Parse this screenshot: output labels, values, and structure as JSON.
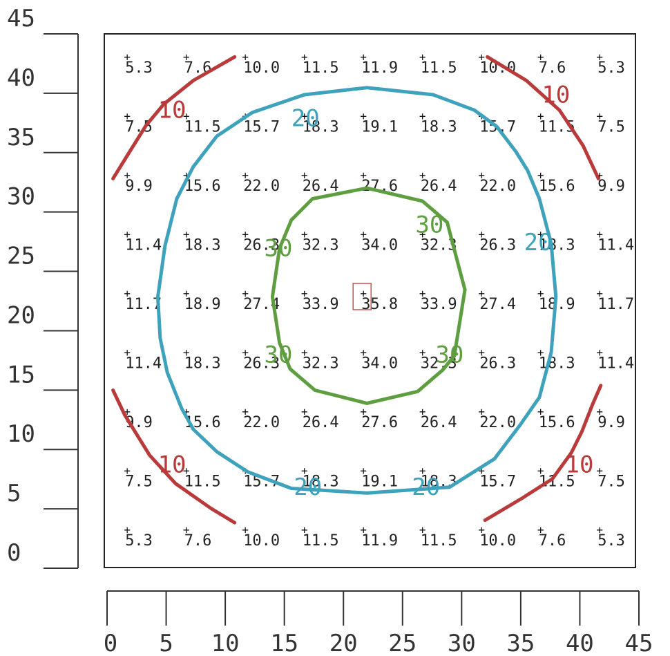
{
  "chart_data": {
    "type": "heatmap",
    "title": "",
    "xlabel": "",
    "ylabel": "",
    "xlim": [
      0,
      45
    ],
    "ylim": [
      0,
      45
    ],
    "x_ticks": [
      "0",
      "5",
      "10",
      "15",
      "20",
      "25",
      "30",
      "35",
      "40",
      "45"
    ],
    "y_ticks": [
      "0",
      "5",
      "10",
      "15",
      "20",
      "25",
      "30",
      "35",
      "40",
      "45"
    ],
    "grid_x": [
      2,
      7,
      12,
      17,
      22,
      27,
      32,
      37,
      42
    ],
    "grid_y": [
      40,
      35,
      30,
      25,
      20,
      15,
      10,
      5,
      0
    ],
    "rows": [
      [
        "5.3",
        "7.6",
        "10.0",
        "11.5",
        "11.9",
        "11.5",
        "10.0",
        "7.6",
        "5.3"
      ],
      [
        "7.5",
        "11.5",
        "15.7",
        "18.3",
        "19.1",
        "18.3",
        "15.7",
        "11.5",
        "7.5"
      ],
      [
        "9.9",
        "15.6",
        "22.0",
        "26.4",
        "27.6",
        "26.4",
        "22.0",
        "15.6",
        "9.9"
      ],
      [
        "11.4",
        "18.3",
        "26.3",
        "32.3",
        "34.0",
        "32.3",
        "26.3",
        "18.3",
        "11.4"
      ],
      [
        "11.7",
        "18.9",
        "27.4",
        "33.9",
        "35.8",
        "33.9",
        "27.4",
        "18.9",
        "11.7"
      ],
      [
        "11.4",
        "18.3",
        "26.3",
        "32.3",
        "34.0",
        "32.3",
        "26.3",
        "18.3",
        "11.4"
      ],
      [
        "9.9",
        "15.6",
        "22.0",
        "26.4",
        "27.6",
        "26.4",
        "22.0",
        "15.6",
        "9.9"
      ],
      [
        "7.5",
        "11.5",
        "15.7",
        "18.3",
        "19.1",
        "18.3",
        "15.7",
        "11.5",
        "7.5"
      ],
      [
        "5.3",
        "7.6",
        "10.0",
        "11.5",
        "11.9",
        "11.5",
        "10.0",
        "7.6",
        "5.3"
      ]
    ],
    "max_point": {
      "x": 22,
      "y": 20,
      "value": "35.8"
    },
    "contours": [
      {
        "level": "10",
        "color": "#b83a3a",
        "segments": [
          [
            [
              0.5,
              30.5
            ],
            [
              1.8,
              32.6
            ],
            [
              3.3,
              35.0
            ],
            [
              4.8,
              36.8
            ],
            [
              7.3,
              38.8
            ],
            [
              10.8,
              40.8
            ]
          ],
          [
            [
              32.2,
              40.8
            ],
            [
              35.5,
              38.8
            ],
            [
              38.3,
              36.3
            ],
            [
              40.3,
              33.3
            ],
            [
              41.6,
              30.5
            ]
          ],
          [
            [
              0.5,
              12.6
            ],
            [
              1.5,
              10.5
            ],
            [
              3.6,
              7.1
            ],
            [
              5.8,
              4.7
            ],
            [
              8.8,
              2.6
            ],
            [
              10.8,
              1.4
            ]
          ],
          [
            [
              32.0,
              1.6
            ],
            [
              35.2,
              3.5
            ],
            [
              37.7,
              5.1
            ],
            [
              39.3,
              7.3
            ],
            [
              40.2,
              9.1
            ],
            [
              41.1,
              11.4
            ],
            [
              41.8,
              13.0
            ]
          ]
        ],
        "labels": [
          [
            5.5,
            36.2
          ],
          [
            38.0,
            37.5
          ],
          [
            5.5,
            6.2
          ],
          [
            40.0,
            6.2
          ]
        ]
      },
      {
        "level": "20",
        "color": "#3ea2bc",
        "segments": [
          [
            [
              22.0,
              38.2
            ],
            [
              27.6,
              37.6
            ],
            [
              31.1,
              36.3
            ],
            [
              33.0,
              34.9
            ],
            [
              34.6,
              32.8
            ],
            [
              35.6,
              31.2
            ],
            [
              36.6,
              28.8
            ],
            [
              37.6,
              25.0
            ],
            [
              38.0,
              20.5
            ],
            [
              37.6,
              15.8
            ],
            [
              36.6,
              12.0
            ],
            [
              35.0,
              9.7
            ],
            [
              32.8,
              6.8
            ],
            [
              29.0,
              4.4
            ],
            [
              22.0,
              3.9
            ],
            [
              15.6,
              4.3
            ],
            [
              11.9,
              5.7
            ],
            [
              9.3,
              7.4
            ],
            [
              7.3,
              9.3
            ],
            [
              6.3,
              11.1
            ],
            [
              5.1,
              14.1
            ],
            [
              4.5,
              17.0
            ],
            [
              4.3,
              20.5
            ],
            [
              4.9,
              24.8
            ],
            [
              5.9,
              28.8
            ],
            [
              7.3,
              31.5
            ],
            [
              9.3,
              34.1
            ],
            [
              12.3,
              36.1
            ],
            [
              16.7,
              37.6
            ],
            [
              22.0,
              38.2
            ]
          ]
        ],
        "labels": [
          [
            16.8,
            35.5
          ],
          [
            36.5,
            25.0
          ],
          [
            17.0,
            4.3
          ],
          [
            27.0,
            4.3
          ]
        ]
      },
      {
        "level": "30",
        "color": "#5e9e40",
        "segments": [
          [
            [
              22.0,
              29.7
            ],
            [
              26.7,
              28.6
            ],
            [
              28.8,
              26.8
            ],
            [
              29.4,
              24.5
            ],
            [
              30.3,
              21.1
            ],
            [
              29.4,
              15.5
            ],
            [
              28.4,
              14.3
            ],
            [
              26.3,
              12.5
            ],
            [
              22.0,
              11.5
            ],
            [
              17.6,
              12.6
            ],
            [
              15.5,
              14.4
            ],
            [
              14.6,
              16.6
            ],
            [
              14.0,
              20.5
            ],
            [
              14.6,
              24.6
            ],
            [
              15.6,
              27.0
            ],
            [
              17.4,
              28.8
            ],
            [
              22.0,
              29.7
            ]
          ]
        ],
        "labels": [
          [
            27.3,
            26.5
          ],
          [
            14.5,
            24.5
          ],
          [
            14.5,
            15.5
          ],
          [
            29.0,
            15.5
          ]
        ]
      }
    ]
  }
}
